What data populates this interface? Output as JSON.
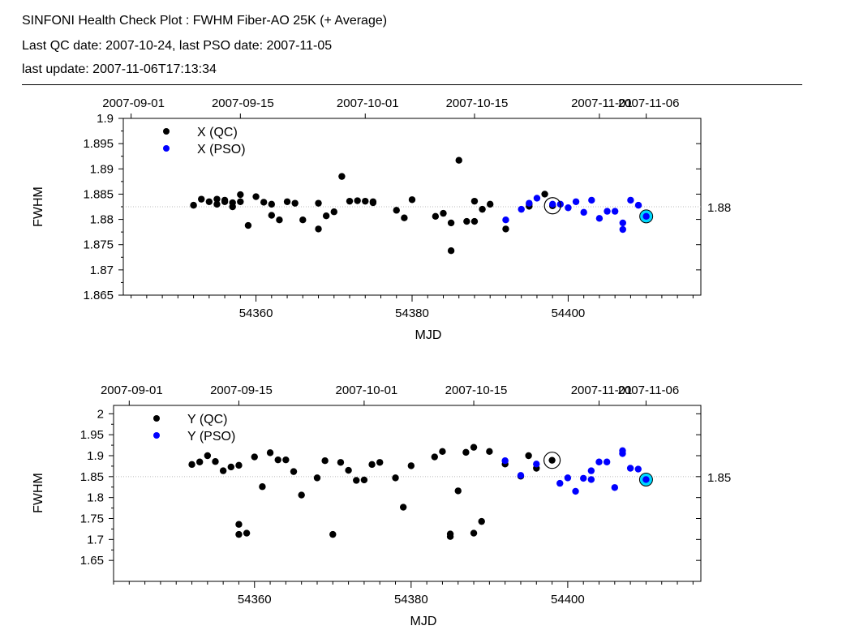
{
  "header": {
    "title": "SINFONI Health Check Plot : FWHM Fiber-AO 25K (+ Average)",
    "dates": "Last QC date: 2007-10-24, last PSO date: 2007-11-05",
    "update": "last update: 2007-11-06T17:13:34"
  },
  "colors": {
    "qc": "#000000",
    "pso": "#0000ff",
    "highlight": "#00d8ff",
    "refline": "#bbbbbb"
  },
  "chart_data": [
    {
      "type": "scatter",
      "name": "x",
      "xlabel": "MJD",
      "ylabel": "FWHM",
      "xlim": [
        54343,
        54417
      ],
      "ylim": [
        1.865,
        1.9
      ],
      "yticks": [
        1.865,
        1.87,
        1.875,
        1.88,
        1.885,
        1.89,
        1.895,
        1.9
      ],
      "ytick_labels": [
        "1.865",
        "1.87",
        "1.875",
        "1.88",
        "1.885",
        "1.89",
        "1.895",
        "1.9"
      ],
      "xticks": [
        54360,
        54380,
        54400
      ],
      "xtick_labels": [
        "54360",
        "54380",
        "54400"
      ],
      "top_axis_ticks": [
        54344,
        54358,
        54374,
        54388,
        54404,
        54410
      ],
      "top_axis_labels": [
        "2007-09-01",
        "2007-09-15",
        "2007-10-01",
        "2007-10-15",
        "2007-11-01",
        "2007-11-06"
      ],
      "average": 1.8825,
      "average_label": "1.88",
      "legend": [
        "X (QC)",
        "X (PSO)"
      ],
      "last_qc": {
        "x": 54398,
        "y": 1.8827
      },
      "last_pso": {
        "x": 54410,
        "y": 1.8806
      },
      "series": [
        {
          "name": "X (QC)",
          "color": "#000000",
          "x": [
            54352,
            54353,
            54354,
            54355,
            54355,
            54356,
            54356,
            54357,
            54357,
            54358,
            54358,
            54359,
            54360,
            54361,
            54362,
            54362,
            54363,
            54364,
            54365,
            54366,
            54368,
            54368,
            54369,
            54370,
            54371,
            54372,
            54373,
            54374,
            54375,
            54375,
            54378,
            54379,
            54380,
            54383,
            54384,
            54385,
            54385,
            54386,
            54387,
            54388,
            54388,
            54389,
            54390,
            54392,
            54395,
            54395,
            54397,
            54398
          ],
          "y": [
            1.8828,
            1.884,
            1.8835,
            1.884,
            1.883,
            1.8838,
            1.8835,
            1.8825,
            1.8833,
            1.8849,
            1.8835,
            1.8788,
            1.8845,
            1.8834,
            1.883,
            1.8808,
            1.8799,
            1.8835,
            1.8832,
            1.8799,
            1.8832,
            1.8781,
            1.8807,
            1.8815,
            1.8885,
            1.8836,
            1.8837,
            1.8836,
            1.8835,
            1.8833,
            1.8818,
            1.8803,
            1.8839,
            1.8806,
            1.8812,
            1.8793,
            1.8738,
            1.8917,
            1.8796,
            1.8836,
            1.8796,
            1.882,
            1.883,
            1.8781,
            1.883,
            1.8826,
            1.885,
            1.8827
          ]
        },
        {
          "name": "X (PSO)",
          "color": "#0000ff",
          "x": [
            54392,
            54394,
            54395,
            54396,
            54398,
            54399,
            54400,
            54401,
            54402,
            54403,
            54404,
            54405,
            54406,
            54407,
            54407,
            54408,
            54409,
            54410
          ],
          "y": [
            1.8799,
            1.882,
            1.8832,
            1.8842,
            1.883,
            1.883,
            1.8823,
            1.8835,
            1.8814,
            1.8838,
            1.8802,
            1.8816,
            1.8816,
            1.8793,
            1.878,
            1.8838,
            1.8828,
            1.8806
          ]
        }
      ]
    },
    {
      "type": "scatter",
      "name": "y",
      "xlabel": "MJD",
      "ylabel": "FWHM",
      "xlim": [
        54342,
        54417
      ],
      "ylim": [
        1.6,
        2.02
      ],
      "yticks": [
        1.65,
        1.7,
        1.75,
        1.8,
        1.85,
        1.9,
        1.95,
        2.0
      ],
      "ytick_labels": [
        "1.65",
        "1.7",
        "1.75",
        "1.8",
        "1.85",
        "1.9",
        "1.95",
        "2"
      ],
      "xticks": [
        54360,
        54380,
        54400
      ],
      "xtick_labels": [
        "54360",
        "54380",
        "54400"
      ],
      "top_axis_ticks": [
        54344,
        54358,
        54374,
        54388,
        54404,
        54410
      ],
      "top_axis_labels": [
        "2007-09-01",
        "2007-09-15",
        "2007-10-01",
        "2007-10-15",
        "2007-11-01",
        "2007-11-06"
      ],
      "average": 1.85,
      "average_label": "1.85",
      "legend": [
        "Y (QC)",
        "Y (PSO)"
      ],
      "last_qc": {
        "x": 54398,
        "y": 1.889
      },
      "last_pso": {
        "x": 54410,
        "y": 1.843
      },
      "series": [
        {
          "name": "Y (QC)",
          "color": "#000000",
          "x": [
            54352,
            54353,
            54354,
            54355,
            54356,
            54357,
            54358,
            54358,
            54358,
            54359,
            54360,
            54361,
            54362,
            54363,
            54364,
            54365,
            54366,
            54368,
            54369,
            54370,
            54371,
            54372,
            54373,
            54374,
            54375,
            54376,
            54378,
            54379,
            54380,
            54383,
            54384,
            54385,
            54385,
            54386,
            54387,
            54388,
            54388,
            54389,
            54390,
            54392,
            54394,
            54395,
            54396,
            54398
          ],
          "y": [
            1.879,
            1.885,
            1.9,
            1.886,
            1.864,
            1.873,
            1.877,
            1.736,
            1.712,
            1.715,
            1.897,
            1.826,
            1.907,
            1.89,
            1.89,
            1.862,
            1.806,
            1.847,
            1.888,
            1.712,
            1.884,
            1.865,
            1.841,
            1.842,
            1.879,
            1.884,
            1.847,
            1.777,
            1.876,
            1.897,
            1.91,
            1.713,
            1.707,
            1.816,
            1.908,
            1.92,
            1.715,
            1.743,
            1.91,
            1.88,
            1.851,
            1.9,
            1.87,
            1.889
          ]
        },
        {
          "name": "Y (PSO)",
          "color": "#0000ff",
          "x": [
            54392,
            54394,
            54396,
            54399,
            54400,
            54401,
            54402,
            54403,
            54403,
            54404,
            54405,
            54406,
            54407,
            54407,
            54408,
            54409,
            54410
          ],
          "y": [
            1.888,
            1.853,
            1.88,
            1.834,
            1.847,
            1.815,
            1.846,
            1.864,
            1.843,
            1.885,
            1.885,
            1.824,
            1.912,
            1.905,
            1.87,
            1.868,
            1.843
          ]
        }
      ]
    }
  ]
}
